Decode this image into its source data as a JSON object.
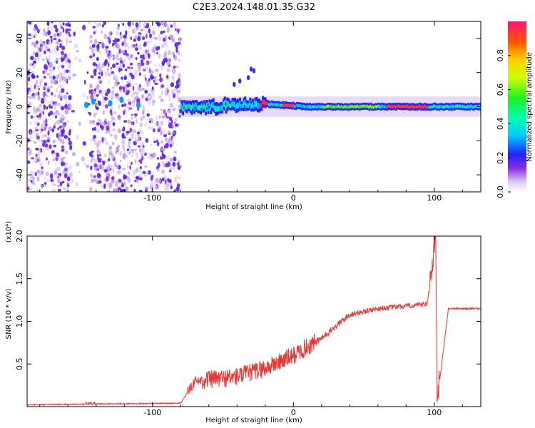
{
  "figure": {
    "title": "C2E3.2024.148.01.35.G32"
  },
  "chart_data": [
    {
      "type": "heatmap",
      "xlabel": "Height of straight line (km)",
      "ylabel": "Frequency (Hz)",
      "xlim": [
        -189,
        133
      ],
      "ylim": [
        -50,
        50
      ],
      "x_ticks": [
        "-100",
        "0",
        "100"
      ],
      "y_ticks": [
        "-40",
        "-20",
        "0",
        "20",
        "40"
      ],
      "colorbar": {
        "label": "Normalized spectral amplitude",
        "range": [
          0,
          1
        ],
        "ticks": [
          "0.0",
          "0.2",
          "0.4",
          "0.6",
          "0.8"
        ]
      },
      "features": [
        {
          "name": "noise",
          "x_range": [
            -189,
            -80
          ],
          "frequency_spread": [
            -50,
            50
          ]
        },
        {
          "name": "signal_trace",
          "x_range": [
            -80,
            133
          ],
          "center_frequency": 0,
          "peak_at_x": [
            -22,
            -4,
            80
          ]
        }
      ],
      "grid": false
    },
    {
      "type": "line",
      "xlabel": "Height of straight line (km)",
      "ylabel": "SNR (10 * v/v)",
      "scale_label": "(x10⁴)",
      "xlim": [
        -189,
        133
      ],
      "ylim": [
        0,
        2.0
      ],
      "x_ticks": [
        "-100",
        "0",
        "100"
      ],
      "y_ticks": [
        "0.5",
        "1.0",
        "1.5",
        "2.0"
      ],
      "line_color": "#ee3333",
      "key_points": [
        {
          "x": -189,
          "y": 0.02
        },
        {
          "x": -145,
          "y": 0.03
        },
        {
          "x": -80,
          "y": 0.04
        },
        {
          "x": -70,
          "y": 0.3
        },
        {
          "x": -40,
          "y": 0.35
        },
        {
          "x": -20,
          "y": 0.45
        },
        {
          "x": 0,
          "y": 0.6
        },
        {
          "x": 20,
          "y": 0.8
        },
        {
          "x": 40,
          "y": 1.08
        },
        {
          "x": 60,
          "y": 1.15
        },
        {
          "x": 95,
          "y": 1.2
        },
        {
          "x": 101,
          "y": 2.0
        },
        {
          "x": 102,
          "y": 0.05
        },
        {
          "x": 110,
          "y": 1.15
        },
        {
          "x": 133,
          "y": 1.15
        }
      ],
      "grid": false
    }
  ]
}
